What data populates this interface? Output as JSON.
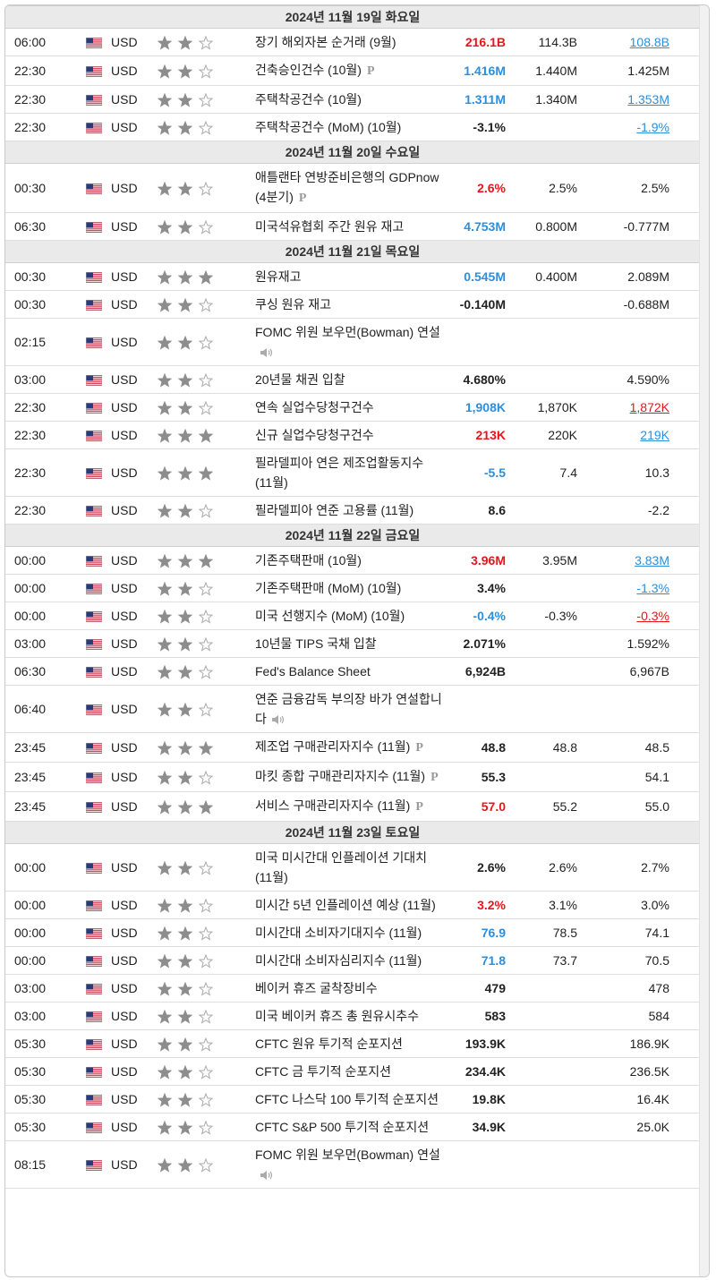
{
  "days": [
    {
      "date": "2024년 11월 19일 화요일",
      "rows": [
        {
          "time": "06:00",
          "currency": "USD",
          "importance": 2,
          "event": "장기 해외자본 순거래 (9월)",
          "actual": "216.1B",
          "actual_color": "#e8141b",
          "forecast": "114.3B",
          "previous": "108.8B",
          "previous_color": "#2b8fdc"
        },
        {
          "time": "22:30",
          "currency": "USD",
          "importance": 2,
          "event": "건축승인건수 (10월)",
          "icon": "P",
          "actual": "1.416M",
          "actual_color": "#2b8fdc",
          "forecast": "1.440M",
          "previous": "1.425M"
        },
        {
          "time": "22:30",
          "currency": "USD",
          "importance": 2,
          "event": "주택착공건수 (10월)",
          "actual": "1.311M",
          "actual_color": "#2b8fdc",
          "forecast": "1.340M",
          "previous": "1.353M",
          "previous_color": "#2b8fdc"
        },
        {
          "time": "22:30",
          "currency": "USD",
          "importance": 2,
          "event": "주택착공건수 (MoM) (10월)",
          "actual": "-3.1%",
          "forecast": null,
          "previous": "-1.9%",
          "previous_color": "#2b8fdc"
        }
      ]
    },
    {
      "date": "2024년 11월 20일 수요일",
      "rows": [
        {
          "time": "00:30",
          "currency": "USD",
          "importance": 2,
          "event": "애틀랜타 연방준비은행의 GDPnow (4분기)",
          "icon": "P",
          "actual": "2.6%",
          "actual_color": "#e8141b",
          "forecast": "2.5%",
          "previous": "2.5%"
        },
        {
          "time": "06:30",
          "currency": "USD",
          "importance": 2,
          "event": "미국석유협회 주간 원유 재고",
          "actual": "4.753M",
          "actual_color": "#2b8fdc",
          "forecast": "0.800M",
          "previous": "-0.777M"
        }
      ]
    },
    {
      "date": "2024년 11월 21일 목요일",
      "rows": [
        {
          "time": "00:30",
          "currency": "USD",
          "importance": 3,
          "event": "원유재고",
          "actual": "0.545M",
          "actual_color": "#2b8fdc",
          "forecast": "0.400M",
          "previous": "2.089M"
        },
        {
          "time": "00:30",
          "currency": "USD",
          "importance": 2,
          "event": "쿠싱 원유 재고",
          "actual": "-0.140M",
          "forecast": null,
          "previous": "-0.688M"
        },
        {
          "time": "02:15",
          "currency": "USD",
          "importance": 2,
          "event": "FOMC 위원 보우먼(Bowman) 연설",
          "icon": "speaker",
          "actual": null,
          "forecast": null,
          "previous": null
        },
        {
          "time": "03:00",
          "currency": "USD",
          "importance": 2,
          "event": "20년물 채권 입찰",
          "actual": "4.680%",
          "forecast": null,
          "previous": "4.590%"
        },
        {
          "time": "22:30",
          "currency": "USD",
          "importance": 2,
          "event": "연속 실업수당청구건수",
          "actual": "1,908K",
          "actual_color": "#2b8fdc",
          "forecast": "1,870K",
          "previous": "1,872K",
          "previous_color": "#e8141b"
        },
        {
          "time": "22:30",
          "currency": "USD",
          "importance": 3,
          "event": "신규 실업수당청구건수",
          "actual": "213K",
          "actual_color": "#e8141b",
          "forecast": "220K",
          "previous": "219K",
          "previous_color": "#2b8fdc"
        },
        {
          "time": "22:30",
          "currency": "USD",
          "importance": 3,
          "event": "필라델피아 연은 제조업활동지수 (11월)",
          "actual": "-5.5",
          "actual_color": "#2b8fdc",
          "forecast": "7.4",
          "previous": "10.3"
        },
        {
          "time": "22:30",
          "currency": "USD",
          "importance": 2,
          "event": "필라델피아 연준 고용률 (11월)",
          "actual": "8.6",
          "forecast": null,
          "previous": "-2.2"
        }
      ]
    },
    {
      "date": "2024년 11월 22일 금요일",
      "rows": [
        {
          "time": "00:00",
          "currency": "USD",
          "importance": 3,
          "event": "기존주택판매 (10월)",
          "actual": "3.96M",
          "actual_color": "#e8141b",
          "forecast": "3.95M",
          "previous": "3.83M",
          "previous_color": "#2b8fdc"
        },
        {
          "time": "00:00",
          "currency": "USD",
          "importance": 2,
          "event": "기존주택판매 (MoM) (10월)",
          "actual": "3.4%",
          "forecast": null,
          "previous": "-1.3%",
          "previous_color": "#2b8fdc"
        },
        {
          "time": "00:00",
          "currency": "USD",
          "importance": 2,
          "event": "미국 선행지수 (MoM) (10월)",
          "actual": "-0.4%",
          "actual_color": "#2b8fdc",
          "forecast": "-0.3%",
          "previous": "-0.3%",
          "previous_color": "#e8141b"
        },
        {
          "time": "03:00",
          "currency": "USD",
          "importance": 2,
          "event": "10년물 TIPS 국채 입찰",
          "actual": "2.071%",
          "forecast": null,
          "previous": "1.592%"
        },
        {
          "time": "06:30",
          "currency": "USD",
          "importance": 2,
          "event": "Fed's Balance Sheet",
          "actual": "6,924B",
          "forecast": null,
          "previous": "6,967B"
        },
        {
          "time": "06:40",
          "currency": "USD",
          "importance": 2,
          "event": "연준 금융감독 부의장 바가 연설합니다",
          "icon": "speaker",
          "actual": null,
          "forecast": null,
          "previous": null
        },
        {
          "time": "23:45",
          "currency": "USD",
          "importance": 3,
          "event": "제조업 구매관리자지수 (11월)",
          "icon": "P",
          "actual": "48.8",
          "forecast": "48.8",
          "previous": "48.5"
        },
        {
          "time": "23:45",
          "currency": "USD",
          "importance": 2,
          "event": "마킷 종합 구매관리자지수 (11월)",
          "icon": "P",
          "actual": "55.3",
          "forecast": null,
          "previous": "54.1"
        },
        {
          "time": "23:45",
          "currency": "USD",
          "importance": 3,
          "event": "서비스 구매관리자지수 (11월)",
          "icon": "P",
          "actual": "57.0",
          "actual_color": "#e8141b",
          "forecast": "55.2",
          "previous": "55.0"
        }
      ]
    },
    {
      "date": "2024년 11월 23일 토요일",
      "rows": [
        {
          "time": "00:00",
          "currency": "USD",
          "importance": 2,
          "event": "미국 미시간대 인플레이션 기대치 (11월)",
          "actual": "2.6%",
          "forecast": "2.6%",
          "previous": "2.7%"
        },
        {
          "time": "00:00",
          "currency": "USD",
          "importance": 2,
          "event": "미시간 5년 인플레이션 예상 (11월)",
          "actual": "3.2%",
          "actual_color": "#e8141b",
          "forecast": "3.1%",
          "previous": "3.0%"
        },
        {
          "time": "00:00",
          "currency": "USD",
          "importance": 2,
          "event": "미시간대 소비자기대지수 (11월)",
          "actual": "76.9",
          "actual_color": "#2b8fdc",
          "forecast": "78.5",
          "previous": "74.1"
        },
        {
          "time": "00:00",
          "currency": "USD",
          "importance": 2,
          "event": "미시간대 소비자심리지수 (11월)",
          "actual": "71.8",
          "actual_color": "#2b8fdc",
          "forecast": "73.7",
          "previous": "70.5"
        },
        {
          "time": "03:00",
          "currency": "USD",
          "importance": 2,
          "event": "베이커 휴즈 굴착장비수",
          "actual": "479",
          "forecast": null,
          "previous": "478"
        },
        {
          "time": "03:00",
          "currency": "USD",
          "importance": 2,
          "event": "미국 베이커 휴즈 총 원유시추수",
          "actual": "583",
          "forecast": null,
          "previous": "584"
        },
        {
          "time": "05:30",
          "currency": "USD",
          "importance": 2,
          "event": "CFTC 원유 투기적 순포지션",
          "actual": "193.9K",
          "forecast": null,
          "previous": "186.9K"
        },
        {
          "time": "05:30",
          "currency": "USD",
          "importance": 2,
          "event": "CFTC 금 투기적 순포지션",
          "actual": "234.4K",
          "forecast": null,
          "previous": "236.5K"
        },
        {
          "time": "05:30",
          "currency": "USD",
          "importance": 2,
          "event": "CFTC 나스닥 100 투기적 순포지션",
          "actual": "19.8K",
          "forecast": null,
          "previous": "16.4K"
        },
        {
          "time": "05:30",
          "currency": "USD",
          "importance": 2,
          "event": "CFTC S&P 500 투기적 순포지션",
          "actual": "34.9K",
          "forecast": null,
          "previous": "25.0K"
        },
        {
          "time": "08:15",
          "currency": "USD",
          "importance": 2,
          "event": "FOMC 위원 보우먼(Bowman) 연설",
          "icon": "speaker",
          "actual": null,
          "forecast": null,
          "previous": null
        }
      ]
    }
  ]
}
